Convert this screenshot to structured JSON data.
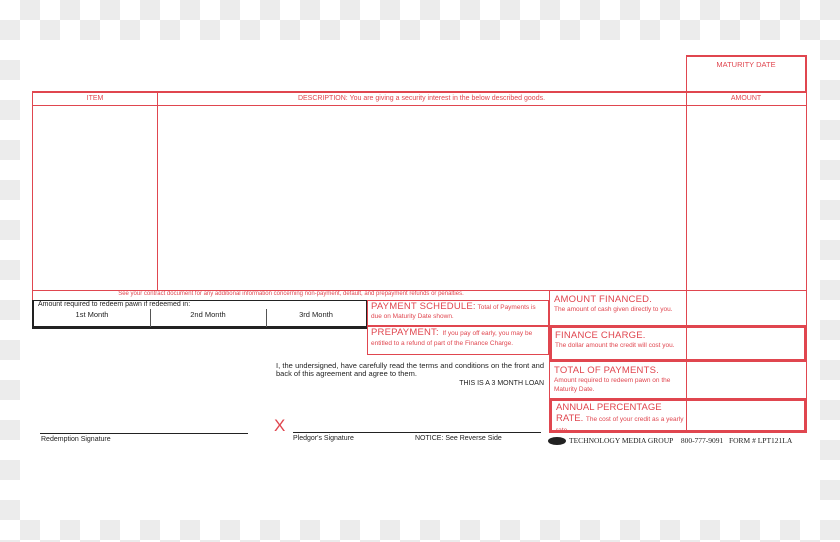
{
  "form": {
    "maturity_date_label": "MATURITY DATE",
    "item_header": "ITEM",
    "description_header_bold": "DESCRIPTION:",
    "description_header_text": "You are giving a security interest in the below described goods.",
    "amount_header": "AMOUNT",
    "contract_notice": "See your contract document for any additional information concerning non-payment, default, and prepayment refunds or penalties.",
    "redeem_label": "Amount required to redeem pawn if redeemed in:",
    "months": [
      "1st Month",
      "2nd Month",
      "3rd Month"
    ],
    "payment_schedule_title": "PAYMENT SCHEDULE:",
    "payment_schedule_text": "Total of Payments is due on Maturity Date shown.",
    "prepayment_title": "PREPAYMENT:",
    "prepayment_text": "If you pay off early, you may be entitled to a refund of part of the Finance Charge.",
    "amount_financed_title": "AMOUNT FINANCED.",
    "amount_financed_text": "The amount of cash given directly to you.",
    "finance_charge_title": "FINANCE CHARGE.",
    "finance_charge_text": "The dollar amount the credit will cost you.",
    "total_payments_title": "TOTAL OF PAYMENTS.",
    "total_payments_text": "Amount required to redeem pawn on the Maturity Date.",
    "apr_title": "ANNUAL PERCENTAGE RATE.",
    "apr_text": "The cost of your credit as a yearly rate.",
    "agreement_text": "I, the undersigned, have carefully read the terms and conditions on the front and back of this agreement and agree to them.",
    "loan_term": "THIS IS A 3 MONTH LOAN",
    "x_mark": "X",
    "redemption_signature": "Redemption Signature",
    "pledgor_signature": "Pledgor's Signature",
    "notice": "NOTICE:  See Reverse Side",
    "publisher": "TECHNOLOGY MEDIA GROUP",
    "phone": "800-777-9091",
    "form_number": "FORM # LPT121LA"
  },
  "colors": {
    "accent": "#e0464f",
    "ink": "#222222"
  }
}
